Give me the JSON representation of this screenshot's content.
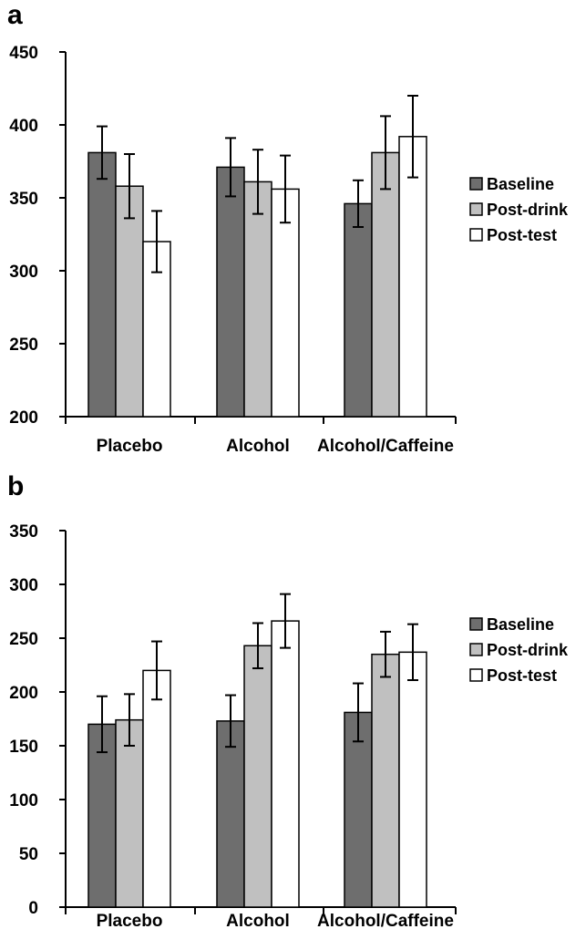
{
  "chart_data": [
    {
      "panel_label": "a",
      "type": "bar",
      "categories": [
        "Placebo",
        "Alcohol",
        "Alcohol/Caffeine"
      ],
      "series": [
        {
          "name": "Baseline",
          "values": [
            381,
            371,
            346
          ],
          "errors": [
            18,
            20,
            16
          ]
        },
        {
          "name": "Post-drink",
          "values": [
            358,
            361,
            381
          ],
          "errors": [
            22,
            22,
            25
          ]
        },
        {
          "name": "Post-test",
          "values": [
            320,
            356,
            392
          ],
          "errors": [
            21,
            23,
            28
          ]
        }
      ],
      "ylim": [
        200,
        450
      ],
      "yticks": [
        "200",
        "250",
        "300",
        "350",
        "400",
        "450"
      ],
      "legend_position": "right"
    },
    {
      "panel_label": "b",
      "type": "bar",
      "categories": [
        "Placebo",
        "Alcohol",
        "Alcohol/Caffeine"
      ],
      "series": [
        {
          "name": "Baseline",
          "values": [
            170,
            173,
            181
          ],
          "errors": [
            26,
            24,
            27
          ]
        },
        {
          "name": "Post-drink",
          "values": [
            174,
            243,
            235
          ],
          "errors": [
            24,
            21,
            21
          ]
        },
        {
          "name": "Post-test",
          "values": [
            220,
            266,
            237
          ],
          "errors": [
            27,
            25,
            26
          ]
        }
      ],
      "ylim": [
        0,
        350
      ],
      "yticks": [
        "0",
        "50",
        "100",
        "150",
        "200",
        "250",
        "300",
        "350"
      ],
      "legend_position": "right"
    }
  ],
  "colors": {
    "Baseline": "#6e6e6e",
    "Post-drink": "#c0c0c0",
    "Post-test": "#ffffff"
  }
}
